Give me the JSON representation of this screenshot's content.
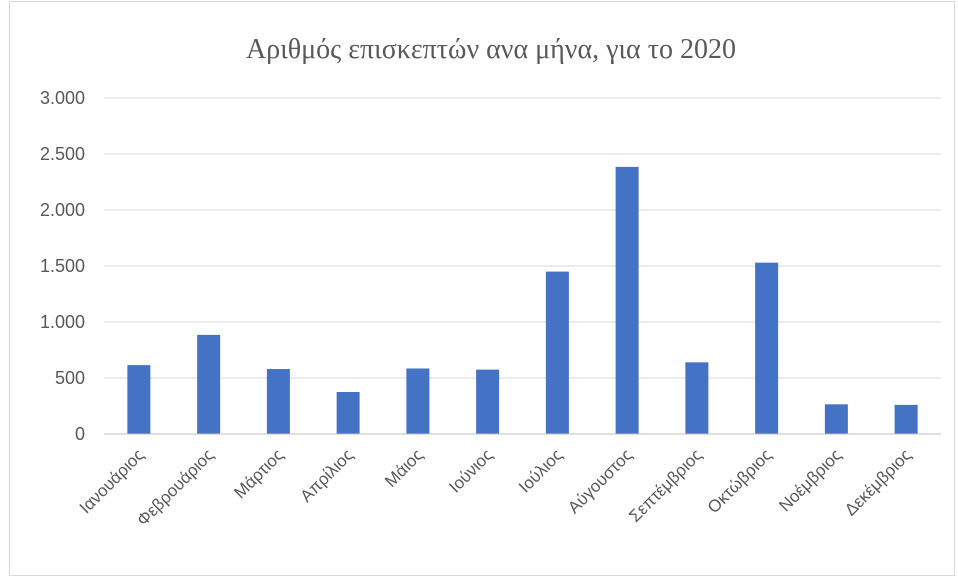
{
  "chart_data": {
    "type": "bar",
    "title": "Αριθμός επισκεπτών ανα μήνα, για το 2020",
    "xlabel": "",
    "ylabel": "",
    "categories": [
      "Ιανουάριος",
      "Φεβρουάριος",
      "Μάρτιος",
      "Απρίλιος",
      "Μάιος",
      "Ιούνιος",
      "Ιούλιος",
      "Αύγουστος",
      "Σεπτέμβριος",
      "Οκτώβριος",
      "Νοέμβριος",
      "Δεκέμβριος"
    ],
    "values": [
      615,
      885,
      580,
      375,
      585,
      575,
      1450,
      2385,
      640,
      1530,
      265,
      260
    ],
    "ylim": [
      0,
      3000
    ],
    "yticks": [
      0,
      500,
      1000,
      1500,
      2000,
      2500,
      3000
    ],
    "ytick_labels": [
      "0",
      "500",
      "1.000",
      "1.500",
      "2.000",
      "2.500",
      "3.000"
    ],
    "bar_color": "#4472c4",
    "grid": true,
    "legend": "none"
  }
}
